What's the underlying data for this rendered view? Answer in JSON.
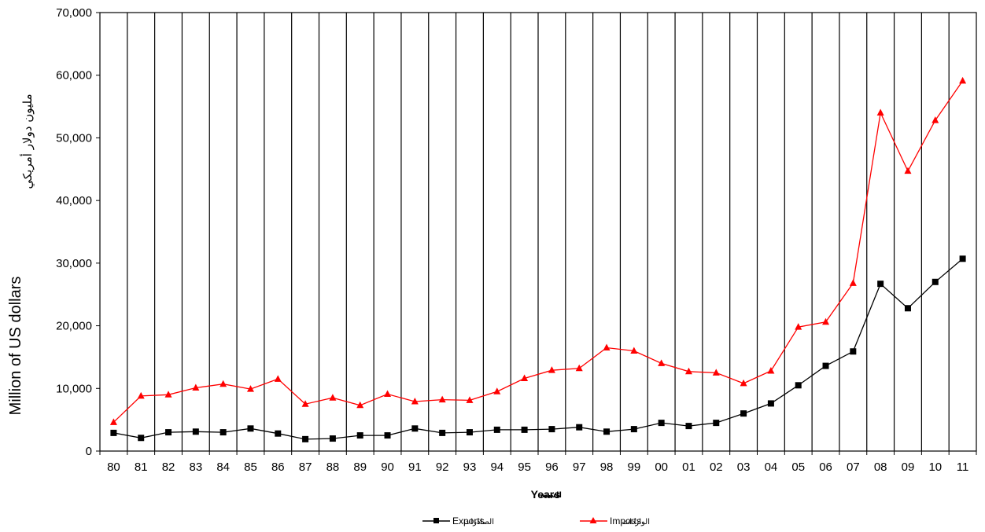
{
  "chart_data": {
    "type": "line",
    "xlabel": "Years",
    "xlabel_ar": "السنة",
    "ylabel": "Million of US dollars",
    "ylabel_ar": "مليون دولار أمريكي",
    "ylim": [
      0,
      70000
    ],
    "yticks": [
      "0",
      "10,000",
      "20,000",
      "30,000",
      "40,000",
      "50,000",
      "60,000",
      "70,000"
    ],
    "grid": "vertical",
    "legend_position": "bottom",
    "categories": [
      "80",
      "81",
      "82",
      "83",
      "84",
      "85",
      "86",
      "87",
      "88",
      "89",
      "90",
      "91",
      "92",
      "93",
      "94",
      "95",
      "96",
      "97",
      "98",
      "99",
      "00",
      "01",
      "02",
      "03",
      "04",
      "05",
      "06",
      "07",
      "08",
      "09",
      "10",
      "11"
    ],
    "series": [
      {
        "name": "Exports",
        "name_ar": "الصادرات",
        "color": "#000000",
        "marker": "square",
        "values": [
          2900,
          2100,
          3000,
          3100,
          3000,
          3600,
          2800,
          1900,
          2000,
          2500,
          2500,
          3600,
          2900,
          3000,
          3400,
          3400,
          3500,
          3800,
          3100,
          3500,
          4500,
          4000,
          4500,
          6000,
          7600,
          10500,
          13600,
          15900,
          26700,
          22800,
          27000,
          30700
        ]
      },
      {
        "name": "Imports",
        "name_ar": "الواردات",
        "color": "#ff0000",
        "marker": "triangle",
        "values": [
          4600,
          8800,
          9000,
          10100,
          10700,
          9900,
          11500,
          7500,
          8500,
          7300,
          9100,
          7900,
          8200,
          8100,
          9500,
          11600,
          12900,
          13200,
          16500,
          16000,
          14000,
          12700,
          12500,
          10800,
          12800,
          19800,
          20600,
          26800,
          54000,
          44700,
          52800,
          59100
        ]
      }
    ]
  }
}
